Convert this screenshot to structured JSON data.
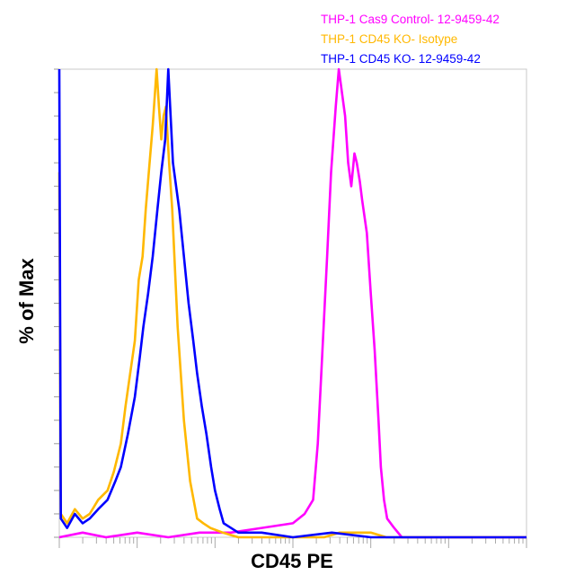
{
  "chart_data": {
    "type": "line",
    "title": "",
    "xlabel": "CD45 PE",
    "ylabel": "% of Max",
    "x_scale": "log",
    "x_decades": 6,
    "ylim": [
      0,
      100
    ],
    "grid": false,
    "legend_position": "top-right",
    "series": [
      {
        "name": "THP-1 Cas9 Control- 12-9459-42",
        "color": "#ff00ff",
        "x": [
          0,
          0.3,
          0.6,
          1.0,
          1.4,
          1.8,
          2.2,
          2.6,
          3.0,
          3.15,
          3.26,
          3.32,
          3.38,
          3.44,
          3.49,
          3.55,
          3.59,
          3.63,
          3.67,
          3.71,
          3.75,
          3.79,
          3.82,
          3.86,
          3.89,
          3.95,
          4.0,
          4.05,
          4.1,
          4.13,
          4.17,
          4.21,
          4.3,
          4.4,
          6.0
        ],
        "y": [
          0,
          1,
          0,
          1,
          0,
          1,
          1,
          2,
          3,
          5,
          8,
          20,
          40,
          60,
          78,
          92,
          100,
          95,
          90,
          80,
          75,
          82,
          80,
          76,
          72,
          65,
          52,
          40,
          25,
          15,
          8,
          4,
          2,
          0,
          0
        ]
      },
      {
        "name": "THP-1 CD45 KO- Isotype",
        "color": "#ffb800",
        "x": [
          0,
          0.02,
          0.1,
          0.2,
          0.3,
          0.39,
          0.5,
          0.62,
          0.7,
          0.79,
          0.85,
          0.91,
          0.97,
          1.02,
          1.07,
          1.11,
          1.16,
          1.2,
          1.25,
          1.28,
          1.31,
          1.34,
          1.37,
          1.41,
          1.45,
          1.52,
          1.6,
          1.68,
          1.77,
          1.85,
          1.94,
          2.1,
          2.3,
          3.4,
          3.6,
          3.8,
          4.0,
          4.2,
          6.0
        ],
        "y": [
          78,
          5,
          3,
          6,
          4,
          5,
          8,
          10,
          14,
          20,
          28,
          35,
          42,
          55,
          60,
          70,
          80,
          88,
          100,
          92,
          85,
          90,
          92,
          80,
          70,
          45,
          25,
          12,
          4,
          3,
          2,
          1,
          0,
          0,
          1,
          1,
          1,
          0,
          0
        ]
      },
      {
        "name": "THP-1 CD45 KO- 12-9459-42",
        "color": "#0000ff",
        "x": [
          0,
          0.02,
          0.1,
          0.2,
          0.3,
          0.39,
          0.5,
          0.62,
          0.72,
          0.79,
          0.88,
          0.97,
          1.03,
          1.08,
          1.14,
          1.2,
          1.26,
          1.31,
          1.36,
          1.4,
          1.43,
          1.46,
          1.5,
          1.54,
          1.6,
          1.66,
          1.72,
          1.77,
          1.83,
          1.89,
          1.95,
          2.0,
          2.06,
          2.11,
          2.3,
          2.6,
          3.0,
          3.5,
          4.0,
          6.0
        ],
        "y": [
          100,
          4,
          2,
          5,
          3,
          4,
          6,
          8,
          12,
          15,
          22,
          30,
          38,
          45,
          52,
          60,
          70,
          78,
          85,
          100,
          90,
          80,
          75,
          70,
          60,
          50,
          42,
          35,
          28,
          22,
          15,
          10,
          6,
          3,
          1,
          1,
          0,
          1,
          0,
          0
        ]
      }
    ]
  }
}
